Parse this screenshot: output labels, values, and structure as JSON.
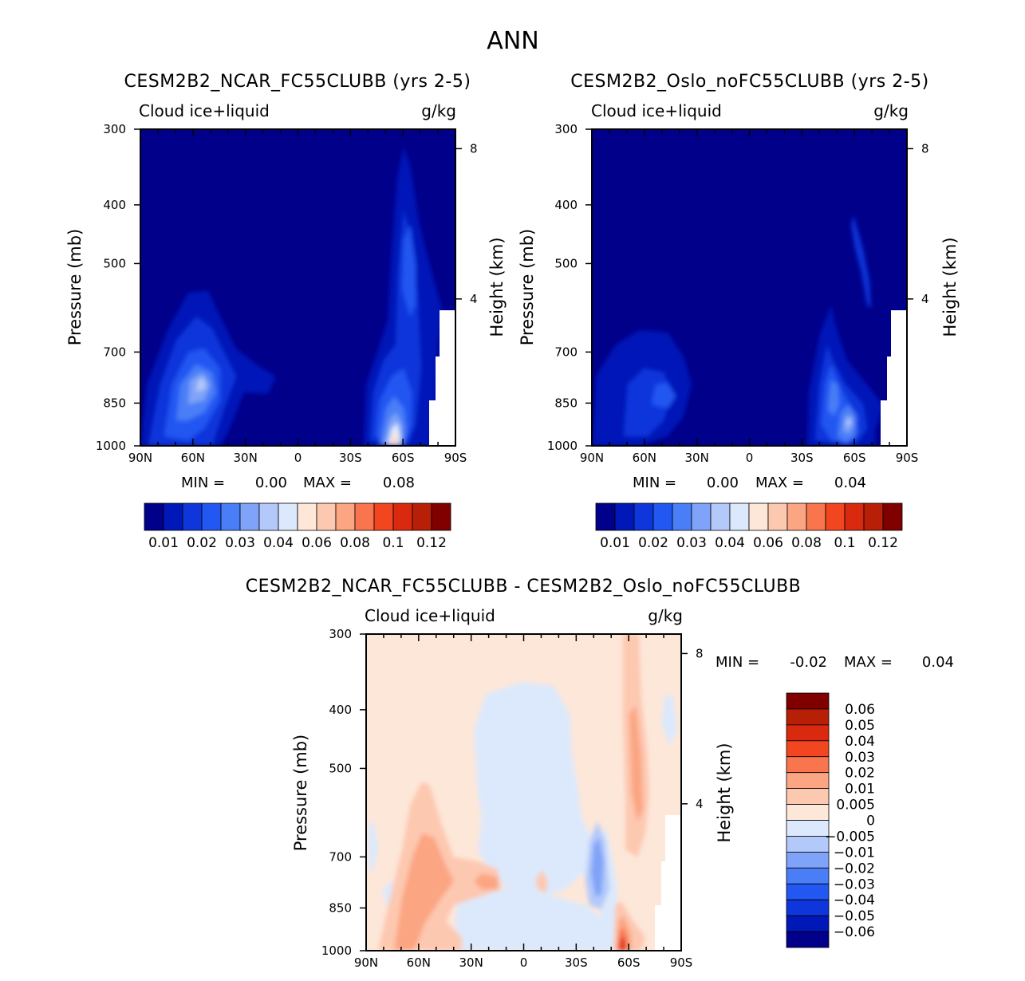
{
  "figure": {
    "season": "ANN"
  },
  "chart_data": [
    {
      "type": "contour",
      "title": "CESM2B2_NCAR_FC55CLUBB (yrs 2-5)",
      "variable": "Cloud ice+liquid",
      "units": "g/kg",
      "xlabel": "",
      "ylabel": "Pressure (mb)",
      "y2label": "Height (km)",
      "x_ticks": [
        "90N",
        "60N",
        "30N",
        "0",
        "30S",
        "60S",
        "90S"
      ],
      "x_tick_lat": [
        90,
        60,
        30,
        0,
        -30,
        -60,
        -90
      ],
      "y_ticks": [
        300,
        400,
        500,
        700,
        850,
        1000
      ],
      "y_tick_labels": [
        "300",
        "400",
        "500",
        "700",
        "850",
        "1000"
      ],
      "y2_ticks": [
        8,
        4
      ],
      "y2_tick_labels": [
        "8",
        "4"
      ],
      "ylim": [
        1000,
        300
      ],
      "xlim": [
        90,
        -90
      ],
      "min_label": "MIN =",
      "min_value": "0.00",
      "max_label": "MAX =",
      "max_value": "0.08",
      "levels": [
        0.01,
        0.015,
        0.02,
        0.025,
        0.03,
        0.035,
        0.04,
        0.05,
        0.06,
        0.07,
        0.08,
        0.09,
        0.1,
        0.11,
        0.12
      ],
      "colorbar_labels": [
        "0.01",
        "0.02",
        "0.03",
        "0.04",
        "0.06",
        "0.08",
        "0.1",
        "0.12"
      ],
      "colors": [
        "#00008b",
        "#0018b8",
        "#0f36db",
        "#2257f2",
        "#4a7ef7",
        "#7fa3f8",
        "#b3c9fa",
        "#dce9fc",
        "#fde7d9",
        "#fdc8b0",
        "#fba582",
        "#f8754e",
        "#f1461f",
        "#d9290f",
        "#b71f07",
        "#800000"
      ],
      "features": [
        {
          "name": "SH high-latitude low-level maximum",
          "lat": -57,
          "p": 960,
          "value": 0.08
        },
        {
          "name": "SH mid-troposphere column",
          "lat": -58,
          "p": 550,
          "value": 0.03
        },
        {
          "name": "NH mid-latitude low-level maximum",
          "lat": 55,
          "p": 880,
          "value": 0.04
        }
      ]
    },
    {
      "type": "contour",
      "title": "CESM2B2_Oslo_noFC55CLUBB (yrs 2-5)",
      "variable": "Cloud ice+liquid",
      "units": "g/kg",
      "xlabel": "",
      "ylabel": "Pressure (mb)",
      "y2label": "Height (km)",
      "x_ticks": [
        "90N",
        "60N",
        "30N",
        "0",
        "30S",
        "60S",
        "90S"
      ],
      "x_tick_lat": [
        90,
        60,
        30,
        0,
        -30,
        -60,
        -90
      ],
      "y_ticks": [
        300,
        400,
        500,
        700,
        850,
        1000
      ],
      "y_tick_labels": [
        "300",
        "400",
        "500",
        "700",
        "850",
        "1000"
      ],
      "y2_ticks": [
        8,
        4
      ],
      "y2_tick_labels": [
        "8",
        "4"
      ],
      "ylim": [
        1000,
        300
      ],
      "xlim": [
        90,
        -90
      ],
      "min_label": "MIN =",
      "min_value": "0.00",
      "max_label": "MAX =",
      "max_value": "0.04",
      "levels": [
        0.01,
        0.015,
        0.02,
        0.025,
        0.03,
        0.035,
        0.04,
        0.05,
        0.06,
        0.07,
        0.08,
        0.09,
        0.1,
        0.11,
        0.12
      ],
      "colorbar_labels": [
        "0.01",
        "0.02",
        "0.03",
        "0.04",
        "0.06",
        "0.08",
        "0.1",
        "0.12"
      ],
      "colors": [
        "#00008b",
        "#0018b8",
        "#0f36db",
        "#2257f2",
        "#4a7ef7",
        "#7fa3f8",
        "#b3c9fa",
        "#dce9fc",
        "#fde7d9",
        "#fdc8b0",
        "#fba582",
        "#f8754e",
        "#f1461f",
        "#d9290f",
        "#b71f07",
        "#800000"
      ],
      "features": [
        {
          "name": "SH high-latitude low-level maximum",
          "lat": -57,
          "p": 940,
          "value": 0.04
        },
        {
          "name": "NH mid-latitude low-level maximum",
          "lat": 55,
          "p": 870,
          "value": 0.025
        }
      ]
    },
    {
      "type": "contour",
      "title": "CESM2B2_NCAR_FC55CLUBB - CESM2B2_Oslo_noFC55CLUBB",
      "variable": "Cloud ice+liquid",
      "units": "g/kg",
      "xlabel": "",
      "ylabel": "Pressure (mb)",
      "y2label": "Height (km)",
      "x_ticks": [
        "90N",
        "60N",
        "30N",
        "0",
        "30S",
        "60S",
        "90S"
      ],
      "x_tick_lat": [
        90,
        60,
        30,
        0,
        -30,
        -60,
        -90
      ],
      "y_ticks": [
        300,
        400,
        500,
        700,
        850,
        1000
      ],
      "y_tick_labels": [
        "300",
        "400",
        "500",
        "700",
        "850",
        "1000"
      ],
      "y2_ticks": [
        8,
        4
      ],
      "y2_tick_labels": [
        "8",
        "4"
      ],
      "ylim": [
        1000,
        300
      ],
      "xlim": [
        90,
        -90
      ],
      "min_label": "MIN =",
      "min_value": "-0.02",
      "max_label": "MAX =",
      "max_value": "0.04",
      "levels": [
        -0.06,
        -0.05,
        -0.04,
        -0.03,
        -0.02,
        -0.01,
        -0.005,
        0,
        0.005,
        0.01,
        0.02,
        0.03,
        0.04,
        0.05,
        0.06
      ],
      "colorbar_labels": [
        "0.06",
        "0.05",
        "0.04",
        "0.03",
        "0.02",
        "0.01",
        "0.005",
        "0",
        "-0.005",
        "-0.01",
        "-0.02",
        "-0.03",
        "-0.04",
        "-0.05",
        "-0.06"
      ],
      "colors": [
        "#800000",
        "#b71f07",
        "#d9290f",
        "#f1461f",
        "#f8754e",
        "#fba582",
        "#fdc8b0",
        "#fde7d9",
        "#dce9fc",
        "#b3c9fa",
        "#7fa3f8",
        "#4a7ef7",
        "#2257f2",
        "#0f36db",
        "#0018b8",
        "#00008b"
      ],
      "features": [
        {
          "name": "SH low-level positive maximum",
          "lat": -60,
          "p": 970,
          "value": 0.04
        },
        {
          "name": "NH mid-latitude positive",
          "lat": 55,
          "p": 850,
          "value": 0.01
        },
        {
          "name": "SH negative band",
          "lat": -42,
          "p": 820,
          "value": -0.02
        }
      ]
    }
  ]
}
